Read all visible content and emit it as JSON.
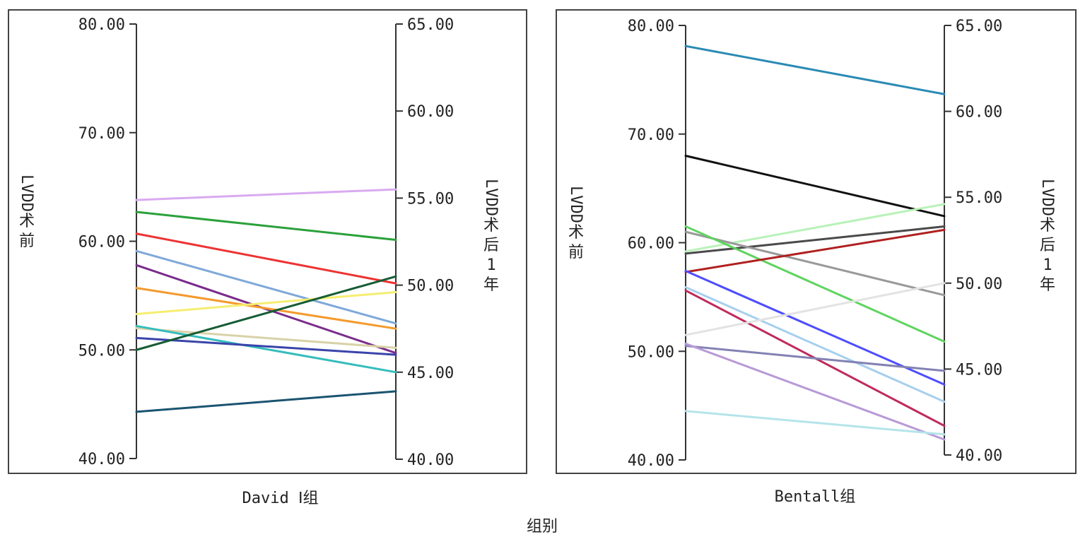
{
  "chart_data": [
    {
      "type": "line",
      "panel_label": "David Ⅰ组",
      "left_axis": {
        "label": "LVDD术前",
        "ylim": [
          40,
          80
        ],
        "ticks": [
          "80.00",
          "70.00",
          "60.00",
          "50.00",
          "40.00"
        ]
      },
      "right_axis": {
        "label": "LVDD术后1年",
        "ylim": [
          40,
          65
        ],
        "ticks": [
          "65.00",
          "60.00",
          "55.00",
          "50.00",
          "45.00",
          "40.00"
        ]
      },
      "series": [
        {
          "color": "#d9aaf0",
          "values": [
            63.8,
            55.5
          ]
        },
        {
          "color": "#2aa13a",
          "values": [
            62.7,
            52.6
          ]
        },
        {
          "color": "#ee3333",
          "values": [
            60.7,
            50.1
          ]
        },
        {
          "color": "#7fa8d8",
          "values": [
            59.1,
            47.8
          ]
        },
        {
          "color": "#7a2c8c",
          "values": [
            57.8,
            46.1
          ]
        },
        {
          "color": "#f39a2c",
          "values": [
            55.7,
            47.5
          ]
        },
        {
          "color": "#f5ee70",
          "values": [
            53.3,
            49.6
          ]
        },
        {
          "color": "#d8d2a8",
          "values": [
            52.0,
            46.4
          ]
        },
        {
          "color": "#35bcbc",
          "values": [
            52.2,
            45.0
          ]
        },
        {
          "color": "#3a44aa",
          "values": [
            51.1,
            46.0
          ]
        },
        {
          "color": "#165c34",
          "values": [
            50.0,
            50.5
          ]
        },
        {
          "color": "#1a5470",
          "values": [
            44.3,
            43.9
          ]
        }
      ]
    },
    {
      "type": "line",
      "panel_label": "Bentall组",
      "left_axis": {
        "label": "LVDD术前",
        "ylim": [
          40,
          80
        ],
        "ticks": [
          "80.00",
          "70.00",
          "60.00",
          "50.00",
          "40.00"
        ]
      },
      "right_axis": {
        "label": "LVDD术后1年",
        "ylim": [
          40,
          65
        ],
        "ticks": [
          "65.00",
          "60.00",
          "55.00",
          "50.00",
          "45.00",
          "40.00"
        ]
      },
      "series": [
        {
          "color": "#2a8ab4",
          "values": [
            78.1,
            61.0
          ]
        },
        {
          "color": "#111111",
          "values": [
            68.0,
            53.9
          ]
        },
        {
          "color": "#b8f2b8",
          "values": [
            59.2,
            54.6
          ]
        },
        {
          "color": "#4a4a4a",
          "values": [
            59.0,
            53.3
          ]
        },
        {
          "color": "#999999",
          "values": [
            61.0,
            49.3
          ]
        },
        {
          "color": "#5ed45e",
          "values": [
            61.5,
            46.6
          ]
        },
        {
          "color": "#b02020",
          "values": [
            57.3,
            53.1
          ]
        },
        {
          "color": "#4d4dff",
          "values": [
            57.4,
            44.1
          ]
        },
        {
          "color": "#a6cfee",
          "values": [
            55.9,
            43.1
          ]
        },
        {
          "color": "#c02a5c",
          "values": [
            55.6,
            41.7
          ]
        },
        {
          "color": "#e3e3e3",
          "values": [
            51.5,
            50.0
          ]
        },
        {
          "color": "#8282b4",
          "values": [
            50.5,
            44.9
          ]
        },
        {
          "color": "#b89ad6",
          "values": [
            50.7,
            40.9
          ]
        },
        {
          "color": "#b4e4ea",
          "values": [
            44.5,
            41.2
          ]
        }
      ]
    }
  ],
  "xlabel": "组别"
}
